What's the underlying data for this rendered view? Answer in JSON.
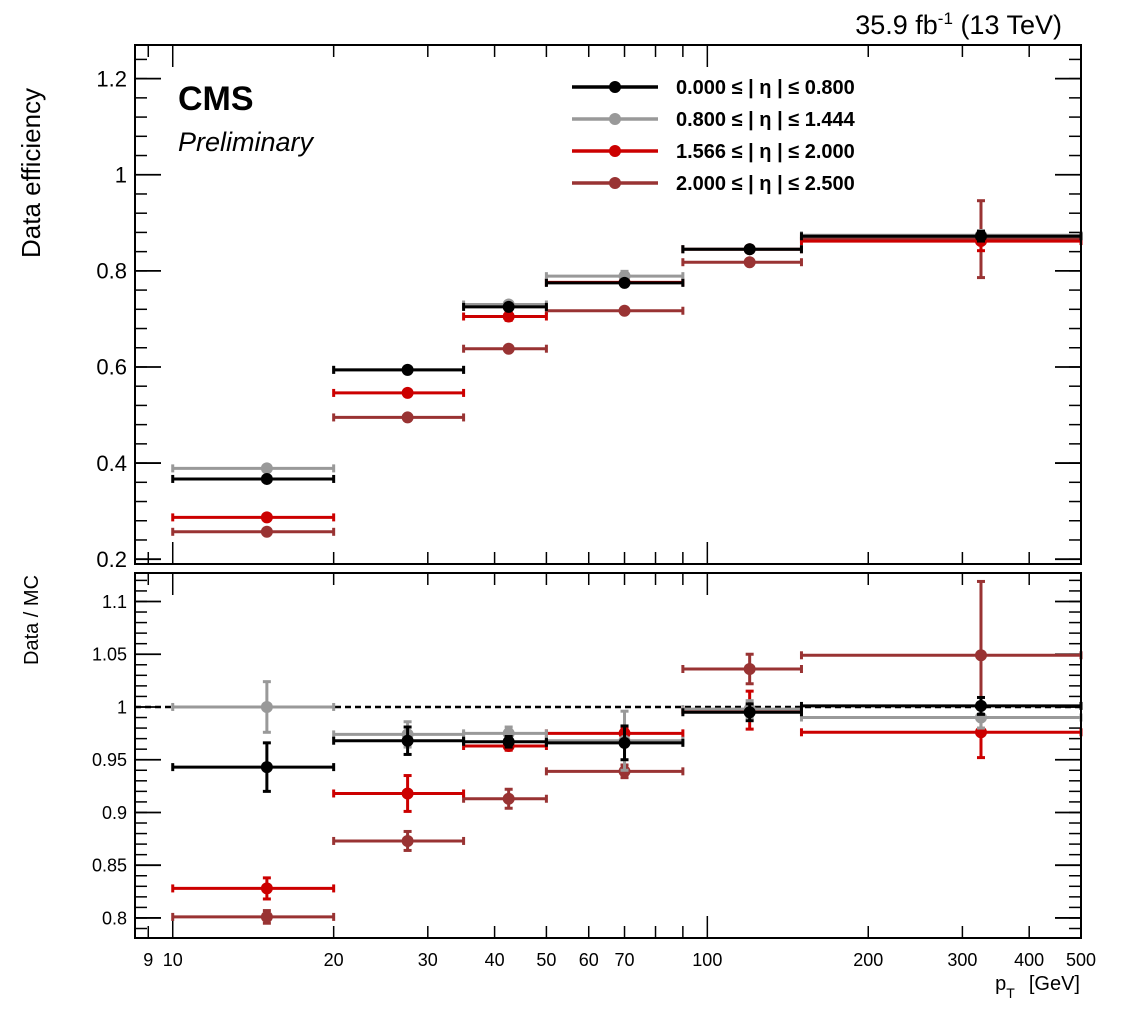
{
  "header": {
    "lumi_value": "35.9",
    "lumi_unit": "fb",
    "lumi_exp": "-1",
    "energy": "(13 TeV)"
  },
  "labels": {
    "experiment": "CMS",
    "status": "Preliminary"
  },
  "chart_data": [
    {
      "type": "scatter",
      "panel": "top",
      "ylabel": "Data efficiency",
      "xscale": "log",
      "xlim": [
        8.5,
        500
      ],
      "ylim": [
        0.19,
        1.27
      ],
      "yticks": [
        0.2,
        0.4,
        0.6,
        0.8,
        1,
        1.2
      ],
      "ytick_labels": [
        "0.2",
        "0.4",
        "0.6",
        "0.8",
        "1",
        "1.2"
      ],
      "legend_position": "top-right",
      "series": [
        {
          "name": "0.000 ≤ | η | ≤  0.800",
          "color": "#000000",
          "points": [
            {
              "xlo": 10,
              "xhi": 20,
              "x": 15,
              "y": 0.367,
              "err": 0.004
            },
            {
              "xlo": 20,
              "xhi": 35,
              "x": 27.5,
              "y": 0.594,
              "err": 0.004
            },
            {
              "xlo": 35,
              "xhi": 50,
              "x": 42.5,
              "y": 0.725,
              "err": 0.004
            },
            {
              "xlo": 50,
              "xhi": 90,
              "x": 70,
              "y": 0.775,
              "err": 0.005
            },
            {
              "xlo": 90,
              "xhi": 150,
              "x": 120,
              "y": 0.845,
              "err": 0.006
            },
            {
              "xlo": 150,
              "xhi": 500,
              "x": 325,
              "y": 0.872,
              "err": 0.01
            }
          ]
        },
        {
          "name": "0.800 ≤ | η | ≤  1.444",
          "color": "#999999",
          "points": [
            {
              "xlo": 10,
              "xhi": 20,
              "x": 15,
              "y": 0.389,
              "err": 0.004
            },
            {
              "xlo": 20,
              "xhi": 35,
              "x": 27.5,
              "y": 0.594,
              "err": 0.004
            },
            {
              "xlo": 35,
              "xhi": 50,
              "x": 42.5,
              "y": 0.73,
              "err": 0.004
            },
            {
              "xlo": 50,
              "xhi": 90,
              "x": 70,
              "y": 0.789,
              "err": 0.01
            },
            {
              "xlo": 90,
              "xhi": 150,
              "x": 120,
              "y": 0.845,
              "err": 0.006
            },
            {
              "xlo": 150,
              "xhi": 500,
              "x": 325,
              "y": 0.874,
              "err": 0.01
            }
          ]
        },
        {
          "name": "1.566 ≤ | η | ≤  2.000",
          "color": "#cc0000",
          "points": [
            {
              "xlo": 10,
              "xhi": 20,
              "x": 15,
              "y": 0.287,
              "err": 0.004
            },
            {
              "xlo": 20,
              "xhi": 35,
              "x": 27.5,
              "y": 0.546,
              "err": 0.004
            },
            {
              "xlo": 35,
              "xhi": 50,
              "x": 42.5,
              "y": 0.705,
              "err": 0.008
            },
            {
              "xlo": 50,
              "xhi": 90,
              "x": 70,
              "y": 0.776,
              "err": 0.005
            },
            {
              "xlo": 90,
              "xhi": 150,
              "x": 120,
              "y": 0.845,
              "err": 0.006
            },
            {
              "xlo": 150,
              "xhi": 500,
              "x": 325,
              "y": 0.862,
              "err": 0.02
            }
          ]
        },
        {
          "name": "2.000 ≤ | η | ≤  2.500",
          "color": "#993333",
          "points": [
            {
              "xlo": 10,
              "xhi": 20,
              "x": 15,
              "y": 0.257,
              "err": 0.004
            },
            {
              "xlo": 20,
              "xhi": 35,
              "x": 27.5,
              "y": 0.495,
              "err": 0.004
            },
            {
              "xlo": 35,
              "xhi": 50,
              "x": 42.5,
              "y": 0.638,
              "err": 0.004
            },
            {
              "xlo": 50,
              "xhi": 90,
              "x": 70,
              "y": 0.717,
              "err": 0.004
            },
            {
              "xlo": 90,
              "xhi": 150,
              "x": 120,
              "y": 0.818,
              "err": 0.005
            },
            {
              "xlo": 150,
              "xhi": 500,
              "x": 325,
              "y": 0.866,
              "err": 0.08
            }
          ]
        }
      ]
    },
    {
      "type": "scatter",
      "panel": "ratio",
      "ylabel": "Data / MC",
      "xlabel_main": "p",
      "xlabel_sub": "T",
      "xlabel_unit": "[GeV]",
      "xscale": "log",
      "xlim": [
        8.5,
        500
      ],
      "ylim": [
        0.781,
        1.127
      ],
      "reference_line": 1,
      "yticks": [
        0.8,
        0.85,
        0.9,
        0.95,
        1,
        1.05,
        1.1
      ],
      "ytick_labels": [
        "0.8",
        "0.85",
        "0.9",
        "0.95",
        "1",
        "1.05",
        "1.1"
      ],
      "xticks": [
        9,
        10,
        20,
        30,
        40,
        50,
        60,
        70,
        100,
        200,
        300,
        400,
        500
      ],
      "xtick_labels": [
        "9",
        "10",
        "20",
        "30",
        "40",
        "50",
        "60",
        "70",
        "100",
        "200",
        "300",
        "400",
        "500"
      ],
      "series": [
        {
          "name": "0.000 ≤ | η | ≤  0.800",
          "color": "#000000",
          "points": [
            {
              "xlo": 10,
              "xhi": 20,
              "x": 15,
              "y": 0.943,
              "err": 0.023
            },
            {
              "xlo": 20,
              "xhi": 35,
              "x": 27.5,
              "y": 0.968,
              "err": 0.013
            },
            {
              "xlo": 35,
              "xhi": 50,
              "x": 42.5,
              "y": 0.967,
              "err": 0.005
            },
            {
              "xlo": 50,
              "xhi": 90,
              "x": 70,
              "y": 0.966,
              "err": 0.016
            },
            {
              "xlo": 90,
              "xhi": 150,
              "x": 120,
              "y": 0.995,
              "err": 0.008
            },
            {
              "xlo": 150,
              "xhi": 500,
              "x": 325,
              "y": 1.001,
              "err": 0.008
            }
          ]
        },
        {
          "name": "0.800 ≤ | η | ≤  1.444",
          "color": "#999999",
          "points": [
            {
              "xlo": 10,
              "xhi": 20,
              "x": 15,
              "y": 1.0,
              "err": 0.024
            },
            {
              "xlo": 20,
              "xhi": 35,
              "x": 27.5,
              "y": 0.974,
              "err": 0.012
            },
            {
              "xlo": 35,
              "xhi": 50,
              "x": 42.5,
              "y": 0.975,
              "err": 0.006
            },
            {
              "xlo": 50,
              "xhi": 90,
              "x": 70,
              "y": 0.968,
              "err": 0.028
            },
            {
              "xlo": 90,
              "xhi": 150,
              "x": 120,
              "y": 0.998,
              "err": 0.008
            },
            {
              "xlo": 150,
              "xhi": 500,
              "x": 325,
              "y": 0.99,
              "err": 0.01
            }
          ]
        },
        {
          "name": "1.566 ≤ | η | ≤  2.000",
          "color": "#cc0000",
          "points": [
            {
              "xlo": 10,
              "xhi": 20,
              "x": 15,
              "y": 0.828,
              "err": 0.01
            },
            {
              "xlo": 20,
              "xhi": 35,
              "x": 27.5,
              "y": 0.918,
              "err": 0.017
            },
            {
              "xlo": 35,
              "xhi": 50,
              "x": 42.5,
              "y": 0.963,
              "err": 0.004
            },
            {
              "xlo": 50,
              "xhi": 90,
              "x": 70,
              "y": 0.975,
              "err": 0.005
            },
            {
              "xlo": 90,
              "xhi": 150,
              "x": 120,
              "y": 0.997,
              "err": 0.018
            },
            {
              "xlo": 150,
              "xhi": 500,
              "x": 325,
              "y": 0.976,
              "err": 0.024
            }
          ]
        },
        {
          "name": "2.000 ≤ | η | ≤  2.500",
          "color": "#993333",
          "points": [
            {
              "xlo": 10,
              "xhi": 20,
              "x": 15,
              "y": 0.801,
              "err": 0.006
            },
            {
              "xlo": 20,
              "xhi": 35,
              "x": 27.5,
              "y": 0.873,
              "err": 0.009
            },
            {
              "xlo": 35,
              "xhi": 50,
              "x": 42.5,
              "y": 0.913,
              "err": 0.009
            },
            {
              "xlo": 50,
              "xhi": 90,
              "x": 70,
              "y": 0.939,
              "err": 0.006
            },
            {
              "xlo": 90,
              "xhi": 150,
              "x": 120,
              "y": 1.036,
              "err": 0.014
            },
            {
              "xlo": 150,
              "xhi": 500,
              "x": 325,
              "y": 1.049,
              "err": 0.07
            }
          ]
        }
      ]
    }
  ]
}
